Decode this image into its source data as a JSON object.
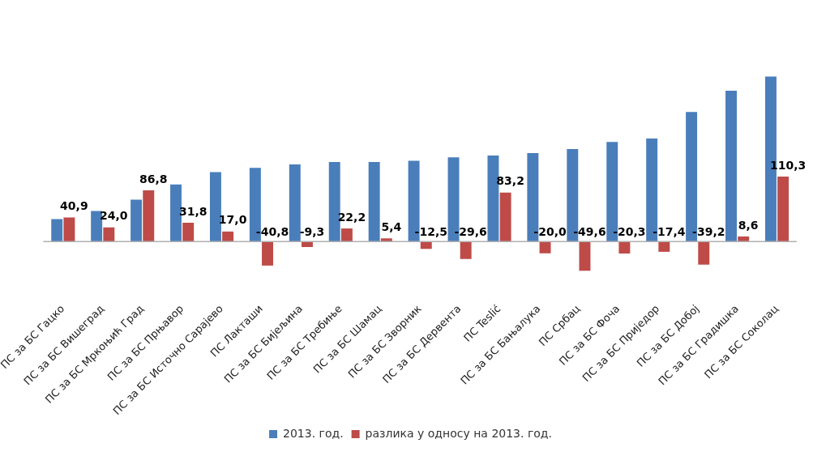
{
  "chart_data": {
    "type": "bar",
    "categories": [
      "ПС за БС Гацко",
      "ПС за БС Вишеград",
      "ПС за БС Мркоњић Град",
      "ПС за БС Прњавор",
      "ПС за БС Источно Сарајево",
      "ПС Лакташи",
      "ПС за БС Бијељина",
      "ПС за БС Требиње",
      "ПС за БС Шамац",
      "ПС за БС Зворник",
      "ПС за БС Дервента",
      "ПС Teslić",
      "ПС за БС Бањалука",
      "ПС Србац",
      "ПС за БС Фоча",
      "ПС за БС Приједор",
      "ПС за БС Добој",
      "ПС за БС Градишка",
      "ПС за БС Соколац"
    ],
    "series": [
      {
        "name": "2013. год.",
        "color": "#4a7ebb",
        "values": [
          38,
          52,
          71,
          97,
          118,
          125,
          131,
          135,
          135,
          137,
          143,
          146,
          150,
          157,
          169,
          175,
          220,
          256,
          280
        ]
      },
      {
        "name": "разлика у односу на 2013. год.",
        "color": "#be4b48",
        "values": [
          40.9,
          24.0,
          86.8,
          31.8,
          17.0,
          -40.8,
          -9.3,
          22.2,
          5.4,
          -12.5,
          -29.6,
          83.2,
          -20.0,
          -49.6,
          -20.3,
          -17.4,
          -39.2,
          8.6,
          110.3
        ],
        "value_labels": [
          "40,9",
          "24,0",
          "86,8",
          "31,8",
          "17,0",
          "-40,8",
          "-9,3",
          "22,2",
          "5,4",
          "-12,5",
          "-29,6",
          "83,2",
          "-20,0",
          "-49,6",
          "-20,3",
          "-17,4",
          "-39,2",
          "8,6",
          "110,3"
        ]
      }
    ],
    "tick_labels": "x",
    "legend": "bottom"
  }
}
